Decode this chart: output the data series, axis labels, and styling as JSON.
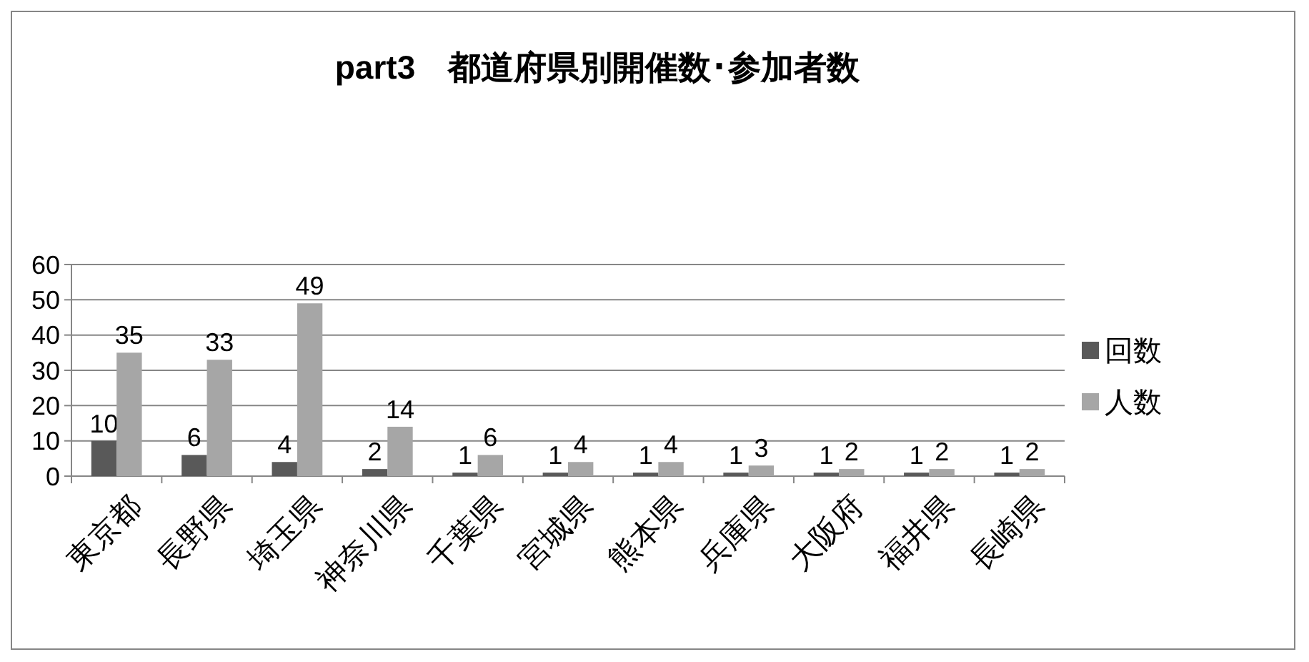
{
  "chart_data": {
    "type": "bar",
    "title": "part3　都道府県別開催数･参加者数",
    "categories": [
      "東京都",
      "長野県",
      "埼玉県",
      "神奈川県",
      "千葉県",
      "宮城県",
      "熊本県",
      "兵庫県",
      "大阪府",
      "福井県",
      "長崎県"
    ],
    "series": [
      {
        "name": "回数",
        "color": "#595959",
        "values": [
          10,
          6,
          4,
          2,
          1,
          1,
          1,
          1,
          1,
          1,
          1
        ]
      },
      {
        "name": "人数",
        "color": "#a6a6a6",
        "values": [
          35,
          33,
          49,
          14,
          6,
          4,
          4,
          3,
          2,
          2,
          2
        ]
      }
    ],
    "ylim": [
      0,
      60
    ],
    "yticks": [
      0,
      10,
      20,
      30,
      40,
      50,
      60
    ],
    "grid": "y",
    "legend": "right",
    "data_labels": true
  }
}
